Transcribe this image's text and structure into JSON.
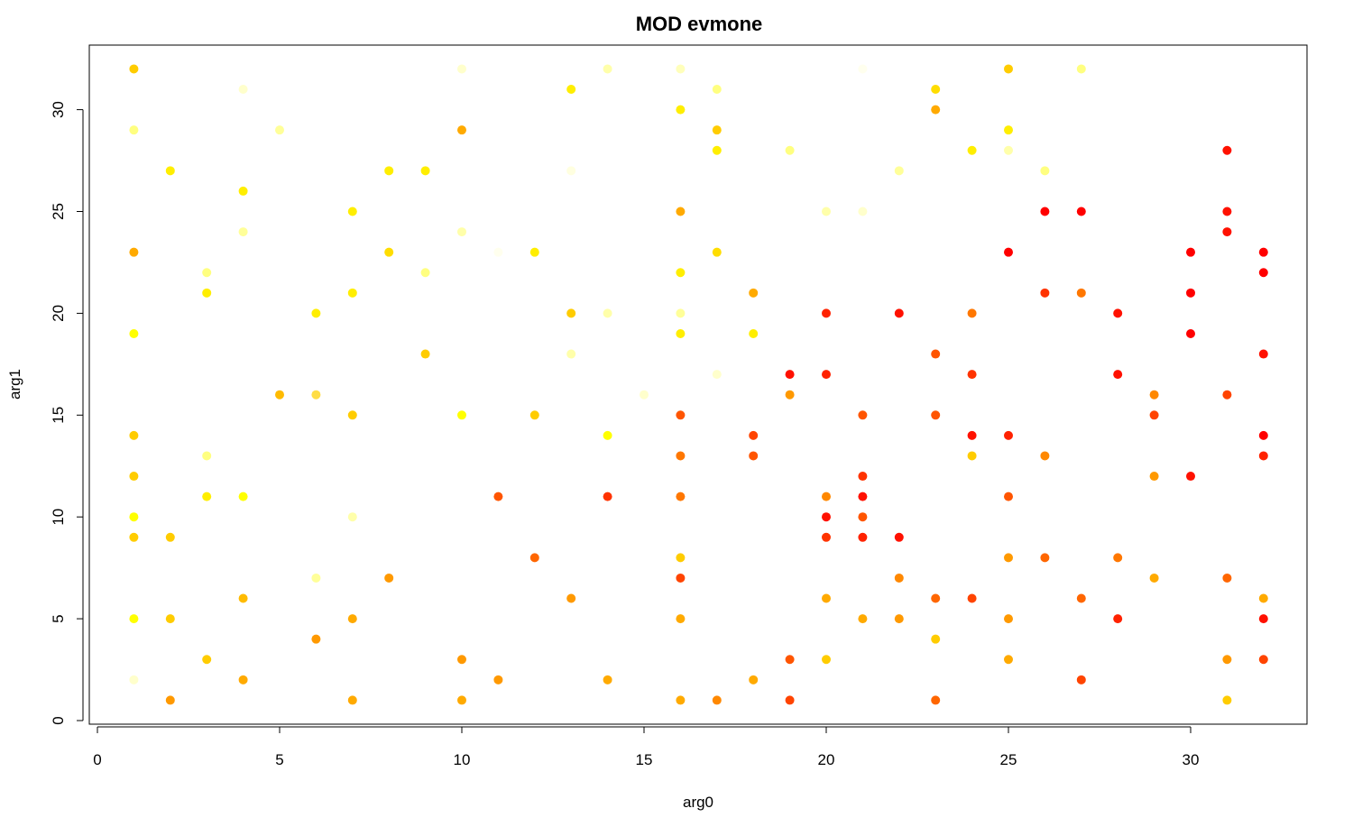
{
  "chart_data": {
    "type": "scatter",
    "title": "MOD evmone",
    "xlabel": "arg0",
    "ylabel": "arg1",
    "xlim": [
      0,
      33
    ],
    "ylim": [
      0,
      32
    ],
    "x_ticks": [
      0,
      5,
      10,
      15,
      20,
      25,
      30
    ],
    "y_ticks": [
      0,
      5,
      10,
      15,
      20,
      25,
      30
    ],
    "grid": false,
    "legend": "none",
    "color_scale": "heat (pale yellow = low, red = high)",
    "points": [
      {
        "x": 1,
        "y": 32,
        "color": "#ffcc00"
      },
      {
        "x": 1,
        "y": 29,
        "color": "#ffff80"
      },
      {
        "x": 1,
        "y": 23,
        "color": "#ffaa00"
      },
      {
        "x": 1,
        "y": 19,
        "color": "#ffff00"
      },
      {
        "x": 1,
        "y": 14,
        "color": "#ffcc00"
      },
      {
        "x": 1,
        "y": 12,
        "color": "#ffcc00"
      },
      {
        "x": 1,
        "y": 10,
        "color": "#ffff00"
      },
      {
        "x": 1,
        "y": 9,
        "color": "#ffcc00"
      },
      {
        "x": 1,
        "y": 5,
        "color": "#ffff00"
      },
      {
        "x": 1,
        "y": 2,
        "color": "#ffffcc"
      },
      {
        "x": 2,
        "y": 27,
        "color": "#ffee00"
      },
      {
        "x": 2,
        "y": 9,
        "color": "#ffcc00"
      },
      {
        "x": 2,
        "y": 5,
        "color": "#ffcc00"
      },
      {
        "x": 2,
        "y": 1,
        "color": "#ff9900"
      },
      {
        "x": 3,
        "y": 22,
        "color": "#ffff80"
      },
      {
        "x": 3,
        "y": 21,
        "color": "#ffee00"
      },
      {
        "x": 3,
        "y": 13,
        "color": "#ffff80"
      },
      {
        "x": 3,
        "y": 11,
        "color": "#ffee00"
      },
      {
        "x": 3,
        "y": 3,
        "color": "#ffcc00"
      },
      {
        "x": 4,
        "y": 31,
        "color": "#ffffcc"
      },
      {
        "x": 4,
        "y": 26,
        "color": "#ffee00"
      },
      {
        "x": 4,
        "y": 24,
        "color": "#ffff99"
      },
      {
        "x": 4,
        "y": 11,
        "color": "#ffff00"
      },
      {
        "x": 4,
        "y": 6,
        "color": "#ffbb00"
      },
      {
        "x": 4,
        "y": 2,
        "color": "#ffaa00"
      },
      {
        "x": 5,
        "y": 29,
        "color": "#ffff99"
      },
      {
        "x": 5,
        "y": 16,
        "color": "#ffbb00"
      },
      {
        "x": 6,
        "y": 20,
        "color": "#ffee00"
      },
      {
        "x": 6,
        "y": 16,
        "color": "#ffdd44"
      },
      {
        "x": 6,
        "y": 7,
        "color": "#ffff99"
      },
      {
        "x": 6,
        "y": 4,
        "color": "#ff9900"
      },
      {
        "x": 7,
        "y": 25,
        "color": "#ffee00"
      },
      {
        "x": 7,
        "y": 21,
        "color": "#ffee00"
      },
      {
        "x": 7,
        "y": 15,
        "color": "#ffcc00"
      },
      {
        "x": 7,
        "y": 10,
        "color": "#ffffaa"
      },
      {
        "x": 7,
        "y": 5,
        "color": "#ffaa00"
      },
      {
        "x": 7,
        "y": 1,
        "color": "#ffaa00"
      },
      {
        "x": 8,
        "y": 27,
        "color": "#ffee00"
      },
      {
        "x": 8,
        "y": 23,
        "color": "#ffdd00"
      },
      {
        "x": 8,
        "y": 7,
        "color": "#ff9900"
      },
      {
        "x": 9,
        "y": 27,
        "color": "#ffee00"
      },
      {
        "x": 9,
        "y": 22,
        "color": "#ffff80"
      },
      {
        "x": 9,
        "y": 18,
        "color": "#ffcc00"
      },
      {
        "x": 10,
        "y": 32,
        "color": "#ffffcc"
      },
      {
        "x": 10,
        "y": 29,
        "color": "#ffaa00"
      },
      {
        "x": 10,
        "y": 24,
        "color": "#ffffaa"
      },
      {
        "x": 10,
        "y": 15,
        "color": "#ffff00"
      },
      {
        "x": 10,
        "y": 3,
        "color": "#ff9900"
      },
      {
        "x": 10,
        "y": 1,
        "color": "#ffaa00"
      },
      {
        "x": 11,
        "y": 23,
        "color": "#ffffee"
      },
      {
        "x": 11,
        "y": 11,
        "color": "#ff5500"
      },
      {
        "x": 11,
        "y": 2,
        "color": "#ff9900"
      },
      {
        "x": 12,
        "y": 23,
        "color": "#ffee00"
      },
      {
        "x": 12,
        "y": 15,
        "color": "#ffcc00"
      },
      {
        "x": 12,
        "y": 8,
        "color": "#ff6600"
      },
      {
        "x": 13,
        "y": 31,
        "color": "#ffee00"
      },
      {
        "x": 13,
        "y": 27,
        "color": "#ffffe0"
      },
      {
        "x": 13,
        "y": 20,
        "color": "#ffcc00"
      },
      {
        "x": 13,
        "y": 18,
        "color": "#ffffaa"
      },
      {
        "x": 13,
        "y": 6,
        "color": "#ff9900"
      },
      {
        "x": 14,
        "y": 32,
        "color": "#ffffaa"
      },
      {
        "x": 14,
        "y": 20,
        "color": "#ffffaa"
      },
      {
        "x": 14,
        "y": 14,
        "color": "#ffff00"
      },
      {
        "x": 14,
        "y": 11,
        "color": "#ff3300"
      },
      {
        "x": 14,
        "y": 2,
        "color": "#ffaa00"
      },
      {
        "x": 15,
        "y": 16,
        "color": "#ffffcc"
      },
      {
        "x": 16,
        "y": 32,
        "color": "#ffffbb"
      },
      {
        "x": 16,
        "y": 30,
        "color": "#ffee00"
      },
      {
        "x": 16,
        "y": 25,
        "color": "#ffaa00"
      },
      {
        "x": 16,
        "y": 22,
        "color": "#ffee00"
      },
      {
        "x": 16,
        "y": 20,
        "color": "#ffff99"
      },
      {
        "x": 16,
        "y": 19,
        "color": "#ffee00"
      },
      {
        "x": 16,
        "y": 15,
        "color": "#ff5500"
      },
      {
        "x": 16,
        "y": 13,
        "color": "#ff7700"
      },
      {
        "x": 16,
        "y": 11,
        "color": "#ff7700"
      },
      {
        "x": 16,
        "y": 8,
        "color": "#ffcc00"
      },
      {
        "x": 16,
        "y": 7,
        "color": "#ff4400"
      },
      {
        "x": 16,
        "y": 5,
        "color": "#ffaa00"
      },
      {
        "x": 16,
        "y": 1,
        "color": "#ffaa00"
      },
      {
        "x": 17,
        "y": 31,
        "color": "#ffff80"
      },
      {
        "x": 17,
        "y": 29,
        "color": "#ffcc00"
      },
      {
        "x": 17,
        "y": 28,
        "color": "#ffee00"
      },
      {
        "x": 17,
        "y": 23,
        "color": "#ffdd00"
      },
      {
        "x": 17,
        "y": 17,
        "color": "#ffffcc"
      },
      {
        "x": 17,
        "y": 1,
        "color": "#ff8800"
      },
      {
        "x": 18,
        "y": 21,
        "color": "#ffaa00"
      },
      {
        "x": 18,
        "y": 19,
        "color": "#ffee00"
      },
      {
        "x": 18,
        "y": 14,
        "color": "#ff4400"
      },
      {
        "x": 18,
        "y": 13,
        "color": "#ff5500"
      },
      {
        "x": 18,
        "y": 2,
        "color": "#ffaa00"
      },
      {
        "x": 19,
        "y": 28,
        "color": "#ffff80"
      },
      {
        "x": 19,
        "y": 17,
        "color": "#ff1100"
      },
      {
        "x": 19,
        "y": 16,
        "color": "#ff9900"
      },
      {
        "x": 19,
        "y": 3,
        "color": "#ff5500"
      },
      {
        "x": 19,
        "y": 1,
        "color": "#ff4400"
      },
      {
        "x": 20,
        "y": 25,
        "color": "#ffffaa"
      },
      {
        "x": 20,
        "y": 20,
        "color": "#ff2200"
      },
      {
        "x": 20,
        "y": 17,
        "color": "#ff2200"
      },
      {
        "x": 20,
        "y": 11,
        "color": "#ff8800"
      },
      {
        "x": 20,
        "y": 10,
        "color": "#ff1100"
      },
      {
        "x": 20,
        "y": 9,
        "color": "#ff3300"
      },
      {
        "x": 20,
        "y": 6,
        "color": "#ffaa00"
      },
      {
        "x": 20,
        "y": 3,
        "color": "#ffcc00"
      },
      {
        "x": 21,
        "y": 32,
        "color": "#ffffee"
      },
      {
        "x": 21,
        "y": 25,
        "color": "#ffffcc"
      },
      {
        "x": 21,
        "y": 15,
        "color": "#ff5500"
      },
      {
        "x": 21,
        "y": 12,
        "color": "#ff3300"
      },
      {
        "x": 21,
        "y": 11,
        "color": "#ff1100"
      },
      {
        "x": 21,
        "y": 10,
        "color": "#ff5500"
      },
      {
        "x": 21,
        "y": 9,
        "color": "#ff2200"
      },
      {
        "x": 21,
        "y": 5,
        "color": "#ffaa00"
      },
      {
        "x": 22,
        "y": 27,
        "color": "#ffff99"
      },
      {
        "x": 22,
        "y": 20,
        "color": "#ff1100"
      },
      {
        "x": 22,
        "y": 9,
        "color": "#ff1100"
      },
      {
        "x": 22,
        "y": 7,
        "color": "#ff8800"
      },
      {
        "x": 22,
        "y": 5,
        "color": "#ff9900"
      },
      {
        "x": 23,
        "y": 31,
        "color": "#ffdd00"
      },
      {
        "x": 23,
        "y": 30,
        "color": "#ffaa00"
      },
      {
        "x": 23,
        "y": 18,
        "color": "#ff5500"
      },
      {
        "x": 23,
        "y": 15,
        "color": "#ff5500"
      },
      {
        "x": 23,
        "y": 6,
        "color": "#ff6600"
      },
      {
        "x": 23,
        "y": 4,
        "color": "#ffcc00"
      },
      {
        "x": 23,
        "y": 1,
        "color": "#ff6600"
      },
      {
        "x": 24,
        "y": 28,
        "color": "#ffee00"
      },
      {
        "x": 24,
        "y": 20,
        "color": "#ff7700"
      },
      {
        "x": 24,
        "y": 17,
        "color": "#ff3300"
      },
      {
        "x": 24,
        "y": 14,
        "color": "#ff1100"
      },
      {
        "x": 24,
        "y": 13,
        "color": "#ffcc00"
      },
      {
        "x": 24,
        "y": 6,
        "color": "#ff4400"
      },
      {
        "x": 25,
        "y": 32,
        "color": "#ffcc00"
      },
      {
        "x": 25,
        "y": 29,
        "color": "#ffee00"
      },
      {
        "x": 25,
        "y": 28,
        "color": "#ffffaa"
      },
      {
        "x": 25,
        "y": 23,
        "color": "#ff0000"
      },
      {
        "x": 25,
        "y": 14,
        "color": "#ff2200"
      },
      {
        "x": 25,
        "y": 11,
        "color": "#ff5500"
      },
      {
        "x": 25,
        "y": 8,
        "color": "#ff9900"
      },
      {
        "x": 25,
        "y": 5,
        "color": "#ff9900"
      },
      {
        "x": 25,
        "y": 3,
        "color": "#ffaa00"
      },
      {
        "x": 26,
        "y": 27,
        "color": "#ffff80"
      },
      {
        "x": 26,
        "y": 25,
        "color": "#ff0000"
      },
      {
        "x": 26,
        "y": 21,
        "color": "#ff3300"
      },
      {
        "x": 26,
        "y": 13,
        "color": "#ff8800"
      },
      {
        "x": 26,
        "y": 8,
        "color": "#ff6600"
      },
      {
        "x": 27,
        "y": 32,
        "color": "#ffff80"
      },
      {
        "x": 27,
        "y": 25,
        "color": "#ff0000"
      },
      {
        "x": 27,
        "y": 21,
        "color": "#ff7700"
      },
      {
        "x": 27,
        "y": 6,
        "color": "#ff6600"
      },
      {
        "x": 27,
        "y": 2,
        "color": "#ff4400"
      },
      {
        "x": 28,
        "y": 20,
        "color": "#ff1100"
      },
      {
        "x": 28,
        "y": 17,
        "color": "#ff1100"
      },
      {
        "x": 28,
        "y": 8,
        "color": "#ff7700"
      },
      {
        "x": 28,
        "y": 5,
        "color": "#ff2200"
      },
      {
        "x": 29,
        "y": 16,
        "color": "#ff8800"
      },
      {
        "x": 29,
        "y": 15,
        "color": "#ff4400"
      },
      {
        "x": 29,
        "y": 12,
        "color": "#ff9900"
      },
      {
        "x": 29,
        "y": 7,
        "color": "#ffaa00"
      },
      {
        "x": 30,
        "y": 23,
        "color": "#ff0000"
      },
      {
        "x": 30,
        "y": 21,
        "color": "#ff0000"
      },
      {
        "x": 30,
        "y": 19,
        "color": "#ff0000"
      },
      {
        "x": 30,
        "y": 12,
        "color": "#ff1100"
      },
      {
        "x": 31,
        "y": 28,
        "color": "#ff1100"
      },
      {
        "x": 31,
        "y": 25,
        "color": "#ff1100"
      },
      {
        "x": 31,
        "y": 24,
        "color": "#ff1100"
      },
      {
        "x": 31,
        "y": 16,
        "color": "#ff4400"
      },
      {
        "x": 31,
        "y": 7,
        "color": "#ff6600"
      },
      {
        "x": 31,
        "y": 3,
        "color": "#ff9900"
      },
      {
        "x": 31,
        "y": 1,
        "color": "#ffcc00"
      },
      {
        "x": 32,
        "y": 23,
        "color": "#ff0000"
      },
      {
        "x": 32,
        "y": 22,
        "color": "#ff0000"
      },
      {
        "x": 32,
        "y": 18,
        "color": "#ff1100"
      },
      {
        "x": 32,
        "y": 14,
        "color": "#ff0000"
      },
      {
        "x": 32,
        "y": 13,
        "color": "#ff2200"
      },
      {
        "x": 32,
        "y": 6,
        "color": "#ffaa00"
      },
      {
        "x": 32,
        "y": 5,
        "color": "#ff1100"
      },
      {
        "x": 32,
        "y": 3,
        "color": "#ff4400"
      }
    ]
  }
}
